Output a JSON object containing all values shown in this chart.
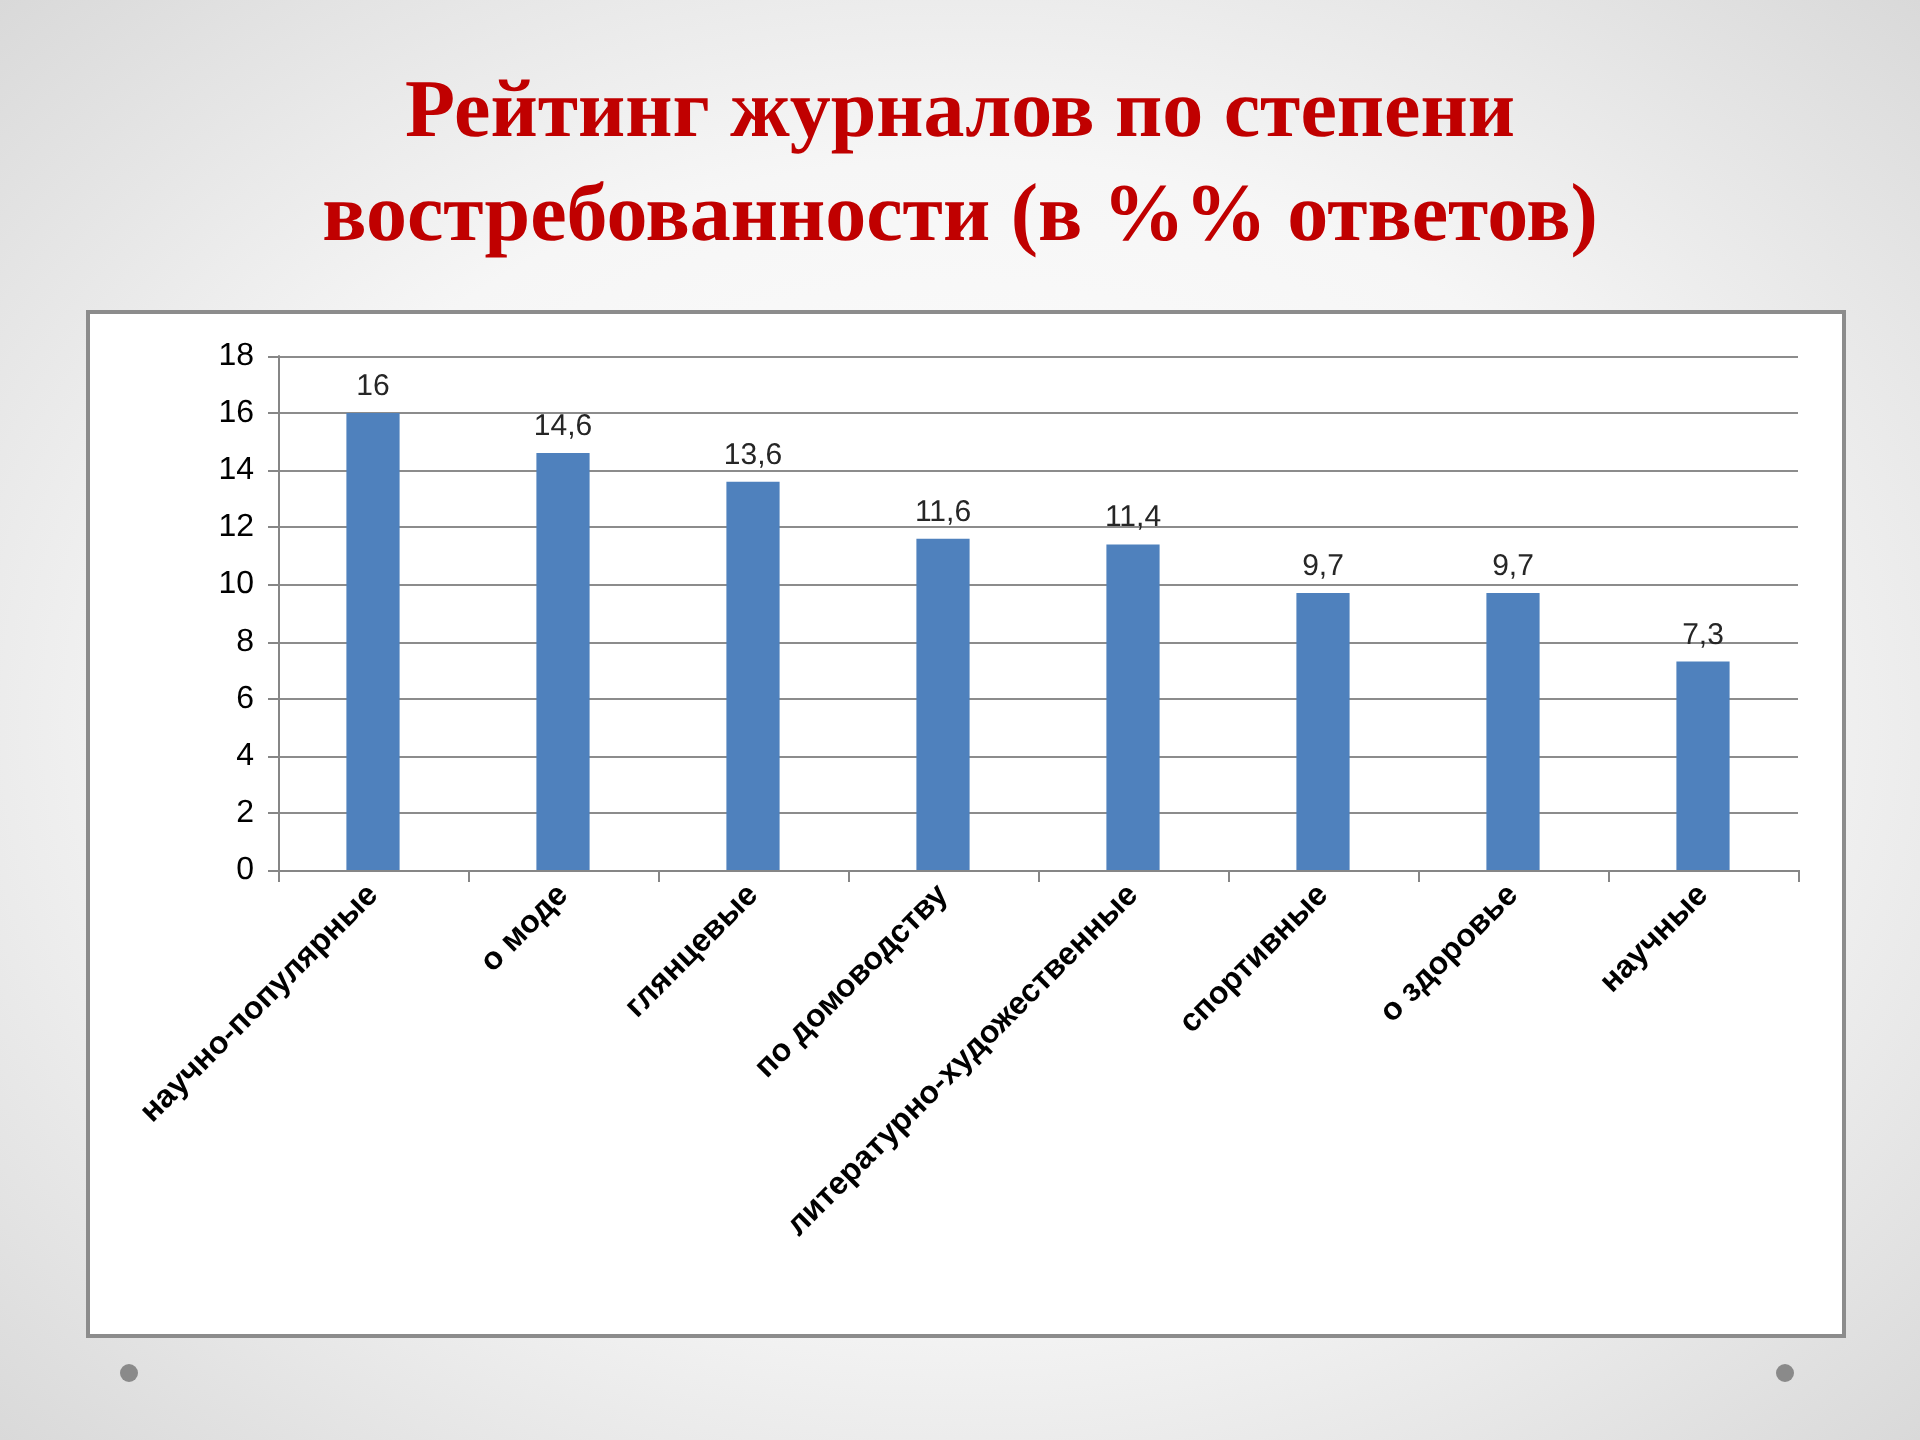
{
  "chart_data": {
    "type": "bar",
    "title": "Рейтинг журналов по степени востребованности (в %% ответов)",
    "categories": [
      "научно-популярные",
      "о моде",
      "глянцевые",
      "по домоводству",
      "литературно-художественные",
      "спортивные",
      "о здоровье",
      "научные"
    ],
    "values": [
      16,
      14.6,
      13.6,
      11.6,
      11.4,
      9.7,
      9.7,
      7.3
    ],
    "value_labels": [
      "16",
      "14,6",
      "13,6",
      "11,6",
      "11,4",
      "9,7",
      "9,7",
      "7,3"
    ],
    "color": "#4f81bd",
    "ylim": [
      0,
      18
    ],
    "yticks": [
      0,
      2,
      4,
      6,
      8,
      10,
      12,
      14,
      16,
      18
    ],
    "grid": "y"
  }
}
